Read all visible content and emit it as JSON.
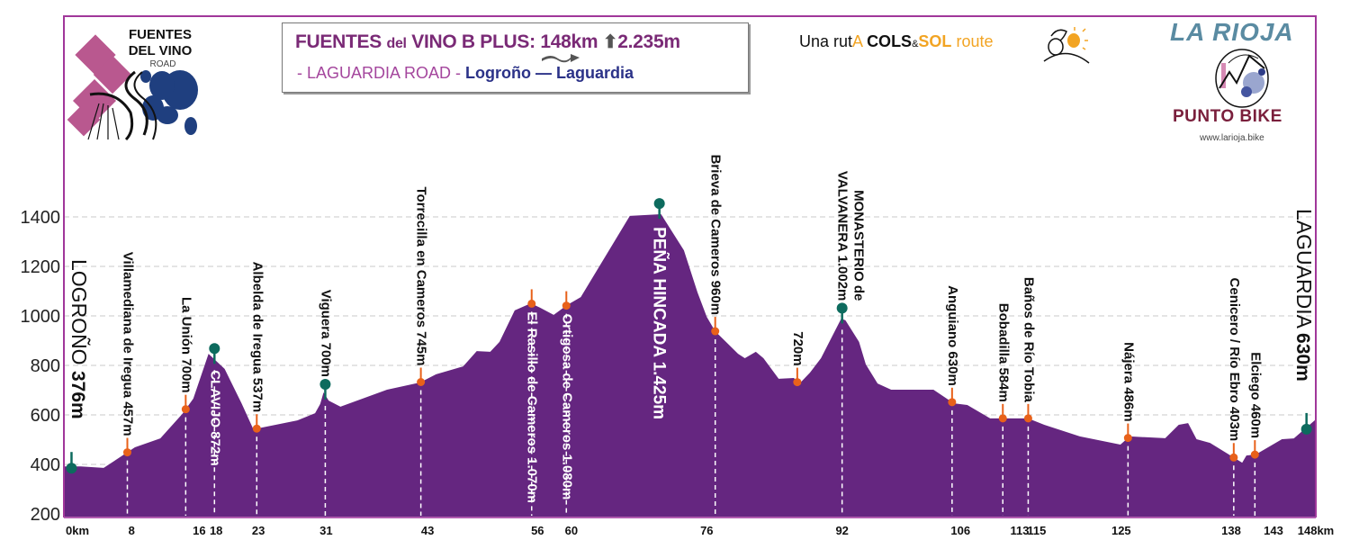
{
  "header": {
    "title_fuentes": "FUENTES",
    "title_del": "del",
    "title_rest": "VINO B PLUS:",
    "distance": "148km",
    "climb_icon": "up-arrow-icon",
    "elevation_gain": "2.235m",
    "subtitle_road": "- LAGUARDIA ROAD -",
    "subtitle_route": "Logroño — Laguardia"
  },
  "logo_left": {
    "line1": "FUENTES",
    "line2": "DEL VINO",
    "line3": "ROAD"
  },
  "cols_sol": {
    "una": "Una rut",
    "a": "A",
    "cols": "COLS",
    "amp": "&",
    "sol": "SOL",
    "route": "route"
  },
  "logo_right": {
    "title": "LA RIOJA",
    "brand": "PUNTO BIKE",
    "website": "www.larioja.bike"
  },
  "colors": {
    "profile": "#652680",
    "frame": "#a0379a",
    "minor_marker": "#e8611a",
    "major_marker": "#0d6b5e",
    "grid": "#c8c8c8"
  },
  "chart_data": {
    "type": "area",
    "xlabel": "",
    "ylabel": "",
    "xlim": [
      0,
      148
    ],
    "ylim": [
      185,
      1600
    ],
    "grid": true,
    "y_ticks": [
      200,
      400,
      600,
      800,
      1000,
      1200,
      1400
    ],
    "x_ticks": [
      {
        "km": 0,
        "label": "0km"
      },
      {
        "km": 8,
        "label": "8"
      },
      {
        "km": 16,
        "label": "16"
      },
      {
        "km": 18,
        "label": "18"
      },
      {
        "km": 23,
        "label": "23"
      },
      {
        "km": 31,
        "label": "31"
      },
      {
        "km": 43,
        "label": "43"
      },
      {
        "km": 56,
        "label": "56"
      },
      {
        "km": 60,
        "label": "60"
      },
      {
        "km": 76,
        "label": "76"
      },
      {
        "km": 92,
        "label": "92"
      },
      {
        "km": 106,
        "label": "106"
      },
      {
        "km": 113,
        "label": "113"
      },
      {
        "km": 115,
        "label": "115"
      },
      {
        "km": 125,
        "label": "125"
      },
      {
        "km": 138,
        "label": "138"
      },
      {
        "km": 143,
        "label": "143"
      },
      {
        "km": 148,
        "label": "148km"
      }
    ],
    "profile": [
      [
        0,
        392
      ],
      [
        2,
        392
      ],
      [
        4.7,
        386
      ],
      [
        8.4,
        469
      ],
      [
        11.4,
        505
      ],
      [
        14,
        604
      ],
      [
        15.3,
        666
      ],
      [
        17.1,
        847
      ],
      [
        19,
        786
      ],
      [
        21,
        647
      ],
      [
        22.4,
        542
      ],
      [
        27.6,
        578
      ],
      [
        29.7,
        607
      ],
      [
        30.3,
        644
      ],
      [
        30.7,
        691
      ],
      [
        31.3,
        658
      ],
      [
        32.7,
        633
      ],
      [
        38.2,
        702
      ],
      [
        42.1,
        731
      ],
      [
        44,
        764
      ],
      [
        47.2,
        796
      ],
      [
        48.8,
        858
      ],
      [
        50.4,
        855
      ],
      [
        51.5,
        895
      ],
      [
        53.3,
        1022
      ],
      [
        55.2,
        1051
      ],
      [
        56.3,
        1033
      ],
      [
        57.9,
        1004
      ],
      [
        59.5,
        1044
      ],
      [
        61.1,
        1076
      ],
      [
        66.9,
        1404
      ],
      [
        70.6,
        1411
      ],
      [
        73.3,
        1265
      ],
      [
        74.9,
        1095
      ],
      [
        76,
        996
      ],
      [
        77,
        938
      ],
      [
        79.7,
        847
      ],
      [
        80.5,
        829
      ],
      [
        81.8,
        855
      ],
      [
        82.7,
        829
      ],
      [
        84.5,
        746
      ],
      [
        86.3,
        749
      ],
      [
        86.9,
        724
      ],
      [
        88.2,
        771
      ],
      [
        89.5,
        829
      ],
      [
        91.9,
        989
      ],
      [
        92.4,
        982
      ],
      [
        94,
        895
      ],
      [
        94.8,
        804
      ],
      [
        96.2,
        727
      ],
      [
        97.8,
        702
      ],
      [
        102.8,
        702
      ],
      [
        105.2,
        647
      ],
      [
        106.8,
        640
      ],
      [
        109.5,
        586
      ],
      [
        114,
        586
      ],
      [
        115.9,
        560
      ],
      [
        120.1,
        513
      ],
      [
        124.9,
        480
      ],
      [
        126,
        513
      ],
      [
        130.2,
        506
      ],
      [
        131.8,
        560
      ],
      [
        132.9,
        567
      ],
      [
        133.9,
        502
      ],
      [
        135.5,
        487
      ],
      [
        139.3,
        407
      ],
      [
        139.8,
        436
      ],
      [
        140.9,
        440
      ],
      [
        144,
        502
      ],
      [
        145.4,
        505
      ],
      [
        148,
        582
      ]
    ],
    "waypoints": [
      {
        "km": 0.9,
        "name": "LOGROÑO",
        "value": "376m",
        "marker": "end",
        "label": "end-left"
      },
      {
        "km": 7.5,
        "name": "Villamediana de Iregua 457m",
        "marker": "minor",
        "label": "above",
        "dashed": true
      },
      {
        "km": 14.4,
        "name": "La Unión 700m",
        "marker": "minor",
        "label": "above",
        "dashed": true
      },
      {
        "km": 17.8,
        "name": "CLAVIJO 872m",
        "marker": "major",
        "label": "below",
        "dashed": true
      },
      {
        "km": 22.8,
        "name": "Albelda de Iregua 537m",
        "marker": "minor",
        "label": "above",
        "dashed": true
      },
      {
        "km": 30.9,
        "name": "Viguera 700m",
        "marker": "major",
        "label": "above",
        "dashed": true
      },
      {
        "km": 42.2,
        "name": "Torrecilla en  Cameros 745m",
        "marker": "minor",
        "label": "above",
        "dashed": true
      },
      {
        "km": 55.3,
        "name": "El Rasillo de Cameros 1.070m",
        "marker": "minor",
        "label": "below",
        "dashed": true
      },
      {
        "km": 59.4,
        "name": "Ortigosa de Cameros 1.080m",
        "marker": "minor",
        "label": "below",
        "dashed": true
      },
      {
        "km": 70.4,
        "name": "PEÑA HINCADA 1.425m",
        "marker": "major",
        "label": "below-big",
        "dashed": false
      },
      {
        "km": 77,
        "name": "Brieva de Cameros 960m",
        "marker": "minor",
        "label": "above",
        "dashed": true
      },
      {
        "km": 86.7,
        "name": "720m",
        "marker": "minor",
        "label": "above",
        "dashed": false
      },
      {
        "km": 92,
        "name": [
          "MONASTERIO de",
          "VALVANERA 1.002m"
        ],
        "marker": "major",
        "label": "above",
        "dashed": true
      },
      {
        "km": 105,
        "name": "Anguiano 630m",
        "marker": "minor",
        "label": "above",
        "dashed": true
      },
      {
        "km": 111,
        "name": "Bobadilla 584m",
        "marker": "minor",
        "label": "above",
        "dashed": true
      },
      {
        "km": 114,
        "name": "Baños de Río Tobia",
        "marker": "minor",
        "label": "above",
        "dashed": true
      },
      {
        "km": 125.8,
        "name": "Nájera 486m",
        "marker": "minor",
        "label": "above",
        "dashed": true
      },
      {
        "km": 138.3,
        "name": "Cenicero / Río Ebro 403m",
        "marker": "minor",
        "label": "above",
        "dashed": true
      },
      {
        "km": 140.8,
        "name": "Elciego 460m",
        "marker": "minor",
        "label": "above",
        "dashed": true
      },
      {
        "km": 146.9,
        "name": "LAGUARDIA",
        "value": "630m",
        "marker": "end",
        "label": "end-right"
      }
    ]
  }
}
